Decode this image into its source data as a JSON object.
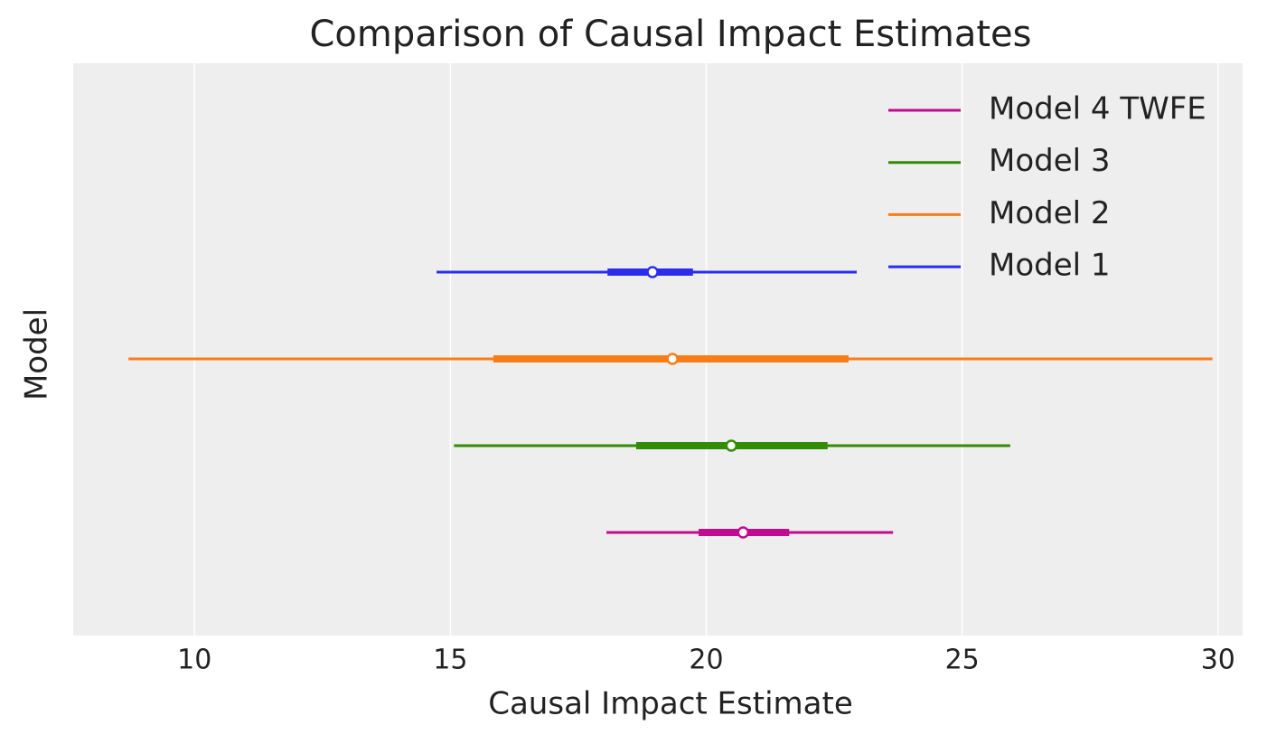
{
  "chart_data": {
    "type": "forest",
    "title": "Comparison of Causal Impact Estimates",
    "x_label": "Causal Impact Estimate",
    "y_label": "Model",
    "xlim": [
      7.63,
      30.48
    ],
    "xticks": [
      10,
      15,
      20,
      25,
      30
    ],
    "grid": true,
    "legend": "upper right",
    "series": [
      {
        "name": "Model 1",
        "color": "#2a2eec",
        "values": [
          14.73,
          18.07,
          18.95,
          19.74,
          22.94
        ]
      },
      {
        "name": "Model 2",
        "color": "#fa7c17",
        "values": [
          8.71,
          15.84,
          19.34,
          22.78,
          29.89
        ]
      },
      {
        "name": "Model 3",
        "color": "#328c06",
        "values": [
          15.07,
          18.63,
          20.49,
          22.37,
          25.94
        ]
      },
      {
        "name": "Model 4 TWFE",
        "color": "#c10c90",
        "values": [
          18.05,
          19.85,
          20.72,
          21.62,
          23.65
        ]
      }
    ]
  }
}
